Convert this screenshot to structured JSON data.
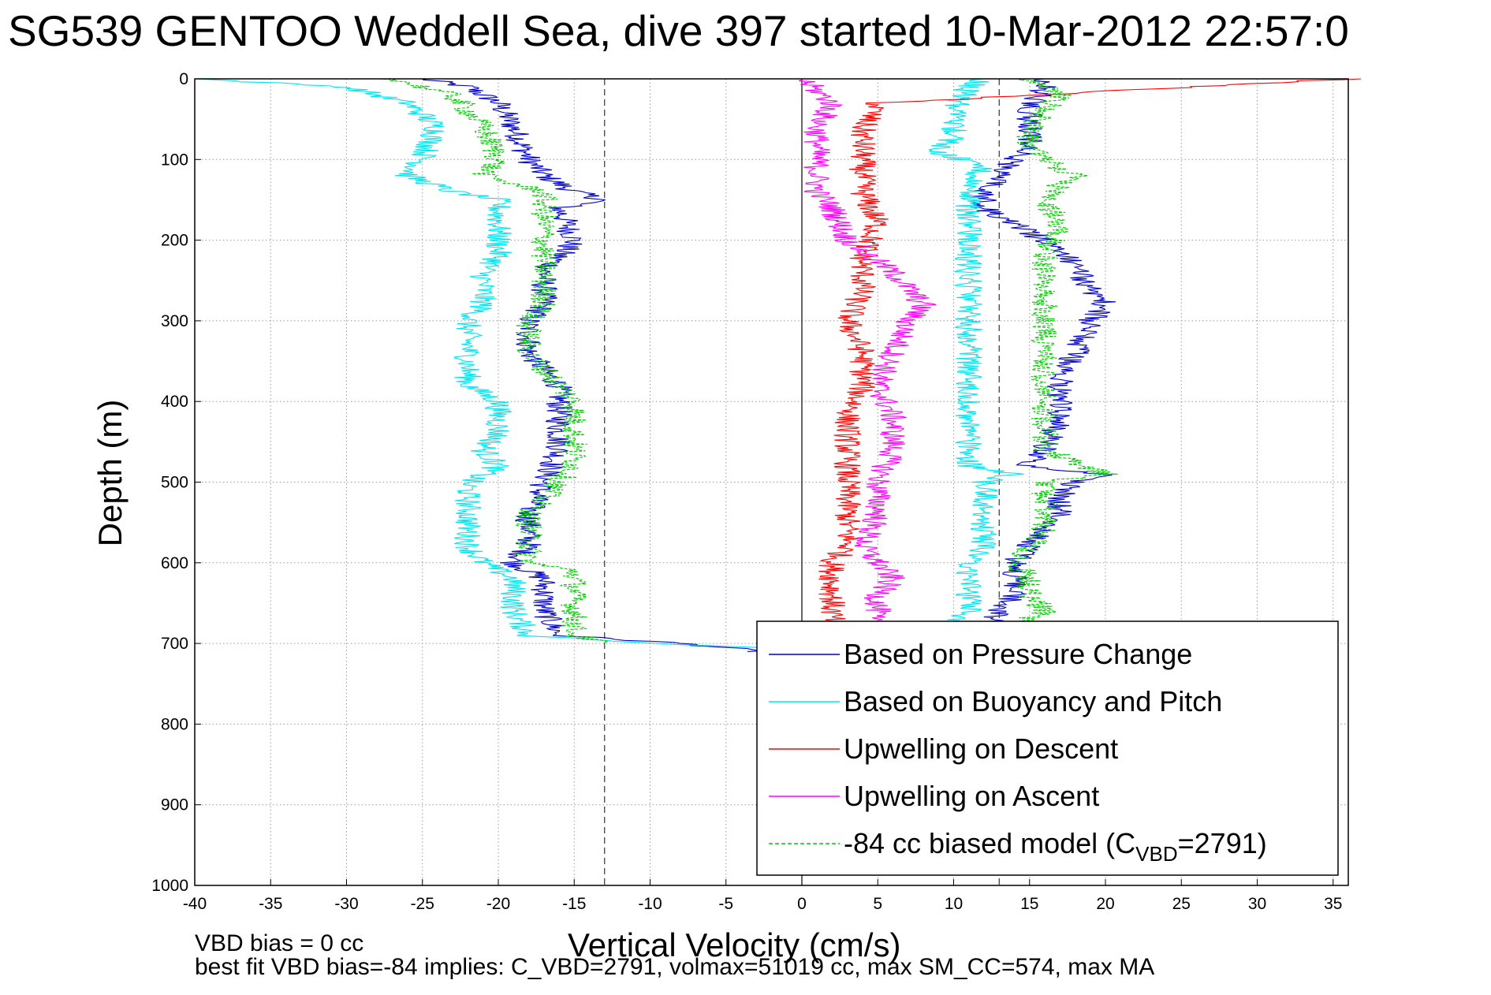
{
  "title": "SG539 GENTOO Weddell Sea, dive 397 started 10-Mar-2012 22:57:0",
  "notes": {
    "line1": "VBD bias = 0 cc",
    "line2": "best fit VBD bias=-84 implies: C_VBD=2791, volmax=51019 cc, max SM_CC=574, max MA"
  },
  "chart_data": {
    "type": "line",
    "xlabel": "Vertical Velocity (cm/s)",
    "ylabel": "Depth (m)",
    "xlim": [
      -40,
      36
    ],
    "ylim": [
      0,
      1000
    ],
    "y_reversed": true,
    "grid": true,
    "x_ticks": [
      -40,
      -35,
      -30,
      -25,
      -20,
      -15,
      -10,
      -5,
      0,
      5,
      10,
      15,
      20,
      25,
      30,
      35
    ],
    "y_ticks": [
      0,
      100,
      200,
      300,
      400,
      500,
      600,
      700,
      800,
      900,
      1000
    ],
    "reference_lines": {
      "solid_vertical_x": 0,
      "dashed_vertical_x": [
        -13,
        13
      ]
    },
    "legend": {
      "position": "bottom-right",
      "entries": [
        {
          "label": "Based on Pressure Change",
          "color": "#0000cc"
        },
        {
          "label": "Based on Buoyancy and Pitch",
          "color": "#00e5ee"
        },
        {
          "label": "Upwelling on Descent",
          "color": "#ff0000"
        },
        {
          "label": "Upwelling on Ascent",
          "color": "#ff00ff"
        },
        {
          "label_main": "-84 cc biased model (C",
          "label_sub": "VBD",
          "label_end": "=2791)",
          "color": "#00cc00",
          "dashed": true
        }
      ]
    },
    "series": [
      {
        "name": "Based on Pressure Change",
        "color": "#0000cc",
        "profiles": [
          {
            "depth": [
              0,
              10,
              30,
              60,
              100,
              120,
              140,
              150,
              160,
              200,
              240,
              280,
              300,
              340,
              380,
              420,
              460,
              500,
              540,
              580,
              600,
              620,
              660,
              690,
              700,
              705,
              710
            ],
            "value": [
              -25,
              -22,
              -20,
              -19,
              -18,
              -17,
              -15,
              -13,
              -16,
              -15,
              -17,
              -17,
              -18,
              -18,
              -16,
              -16,
              -16,
              -17,
              -18,
              -18,
              -19,
              -17,
              -17,
              -16,
              -8,
              -5,
              -3
            ]
          },
          {
            "depth": [
              710,
              700,
              680,
              660,
              640,
              620,
              600,
              580,
              560,
              540,
              520,
              500,
              490,
              480,
              460,
              420,
              380,
              340,
              300,
              280,
              260,
              230,
              200,
              180,
              160,
              140,
              120,
              100,
              80,
              40,
              10,
              0
            ],
            "value": [
              -3,
              5,
              12,
              13,
              14,
              14,
              14,
              15,
              16,
              17,
              17,
              18,
              20,
              15,
              16,
              17,
              17,
              18,
              19,
              20,
              19,
              18,
              16,
              14,
              12,
              12,
              13,
              14,
              15,
              15,
              16,
              16
            ]
          }
        ]
      },
      {
        "name": "Based on Buoyancy and Pitch",
        "color": "#00e5ee",
        "profiles": [
          {
            "depth": [
              0,
              10,
              30,
              60,
              100,
              120,
              140,
              150,
              160,
              200,
              220,
              240,
              280,
              300,
              340,
              380,
              400,
              440,
              460,
              480,
              500,
              540,
              580,
              600,
              620,
              660,
              690,
              700,
              705
            ],
            "value": [
              -40,
              -30,
              -26,
              -24,
              -25,
              -26,
              -23,
              -20,
              -20,
              -20,
              -20,
              -21,
              -21,
              -22,
              -22,
              -22,
              -20,
              -20,
              -21,
              -20,
              -22,
              -22,
              -22,
              -21,
              -19,
              -19,
              -18,
              -10,
              -3
            ]
          },
          {
            "depth": [
              680,
              660,
              640,
              620,
              600,
              580,
              560,
              520,
              500,
              490,
              480,
              420,
              360,
              300,
              240,
              200,
              160,
              130,
              110,
              90,
              70,
              40,
              10,
              0
            ],
            "value": [
              10,
              11,
              11,
              11,
              11,
              12,
              12,
              12,
              12,
              14,
              11,
              11,
              11,
              11,
              11,
              11,
              11,
              11,
              12,
              9,
              10,
              10,
              11,
              12
            ]
          }
        ]
      },
      {
        "name": "Upwelling on Descent",
        "color": "#ff0000",
        "profiles": [
          {
            "depth": [
              0,
              30,
              60,
              100,
              140,
              180,
              220,
              260,
              300,
              340,
              380,
              420,
              460,
              500,
              540,
              580,
              600,
              620,
              640,
              660,
              680
            ],
            "value": [
              36,
              5,
              4,
              4,
              4,
              5,
              4,
              4,
              3,
              4,
              4,
              3,
              3,
              3,
              3,
              3,
              2,
              2,
              2,
              2,
              2
            ]
          }
        ]
      },
      {
        "name": "Upwelling on Ascent",
        "color": "#ff00ff",
        "profiles": [
          {
            "depth": [
              0,
              30,
              60,
              100,
              140,
              160,
              200,
              240,
              280,
              300,
              340,
              380,
              420,
              460,
              500,
              540,
              580,
              600,
              620,
              640,
              660,
              680
            ],
            "value": [
              0,
              2,
              1,
              1,
              1,
              2,
              3,
              6,
              8,
              7,
              6,
              5,
              6,
              6,
              5,
              5,
              4,
              5,
              6,
              5,
              5,
              4
            ]
          }
        ]
      },
      {
        "name": "-84 cc biased model (CVBD=2791)",
        "color": "#00cc00",
        "dashed": true,
        "profiles": [
          {
            "depth": [
              0,
              20,
              60,
              100,
              120,
              140,
              160,
              200,
              240,
              280,
              300,
              340,
              380,
              400,
              440,
              460,
              480,
              500,
              540,
              580,
              600,
              610,
              620,
              660,
              690,
              700
            ],
            "value": [
              -27,
              -23,
              -21,
              -20,
              -21,
              -17,
              -17,
              -17,
              -17,
              -17,
              -18,
              -18,
              -16,
              -15,
              -15,
              -15,
              -15,
              -16,
              -18,
              -18,
              -18,
              -15,
              -15,
              -15,
              -15,
              -13
            ]
          },
          {
            "depth": [
              680,
              660,
              640,
              620,
              600,
              560,
              520,
              500,
              490,
              460,
              420,
              380,
              340,
              300,
              260,
              220,
              180,
              150,
              130,
              120,
              100,
              80,
              60,
              40,
              20,
              0
            ],
            "value": [
              14,
              16,
              15,
              15,
              14,
              16,
              16,
              16,
              20,
              16,
              16,
              16,
              16,
              16,
              16,
              16,
              17,
              16,
              17,
              18,
              16,
              15,
              15,
              16,
              17,
              15
            ]
          }
        ]
      }
    ]
  }
}
